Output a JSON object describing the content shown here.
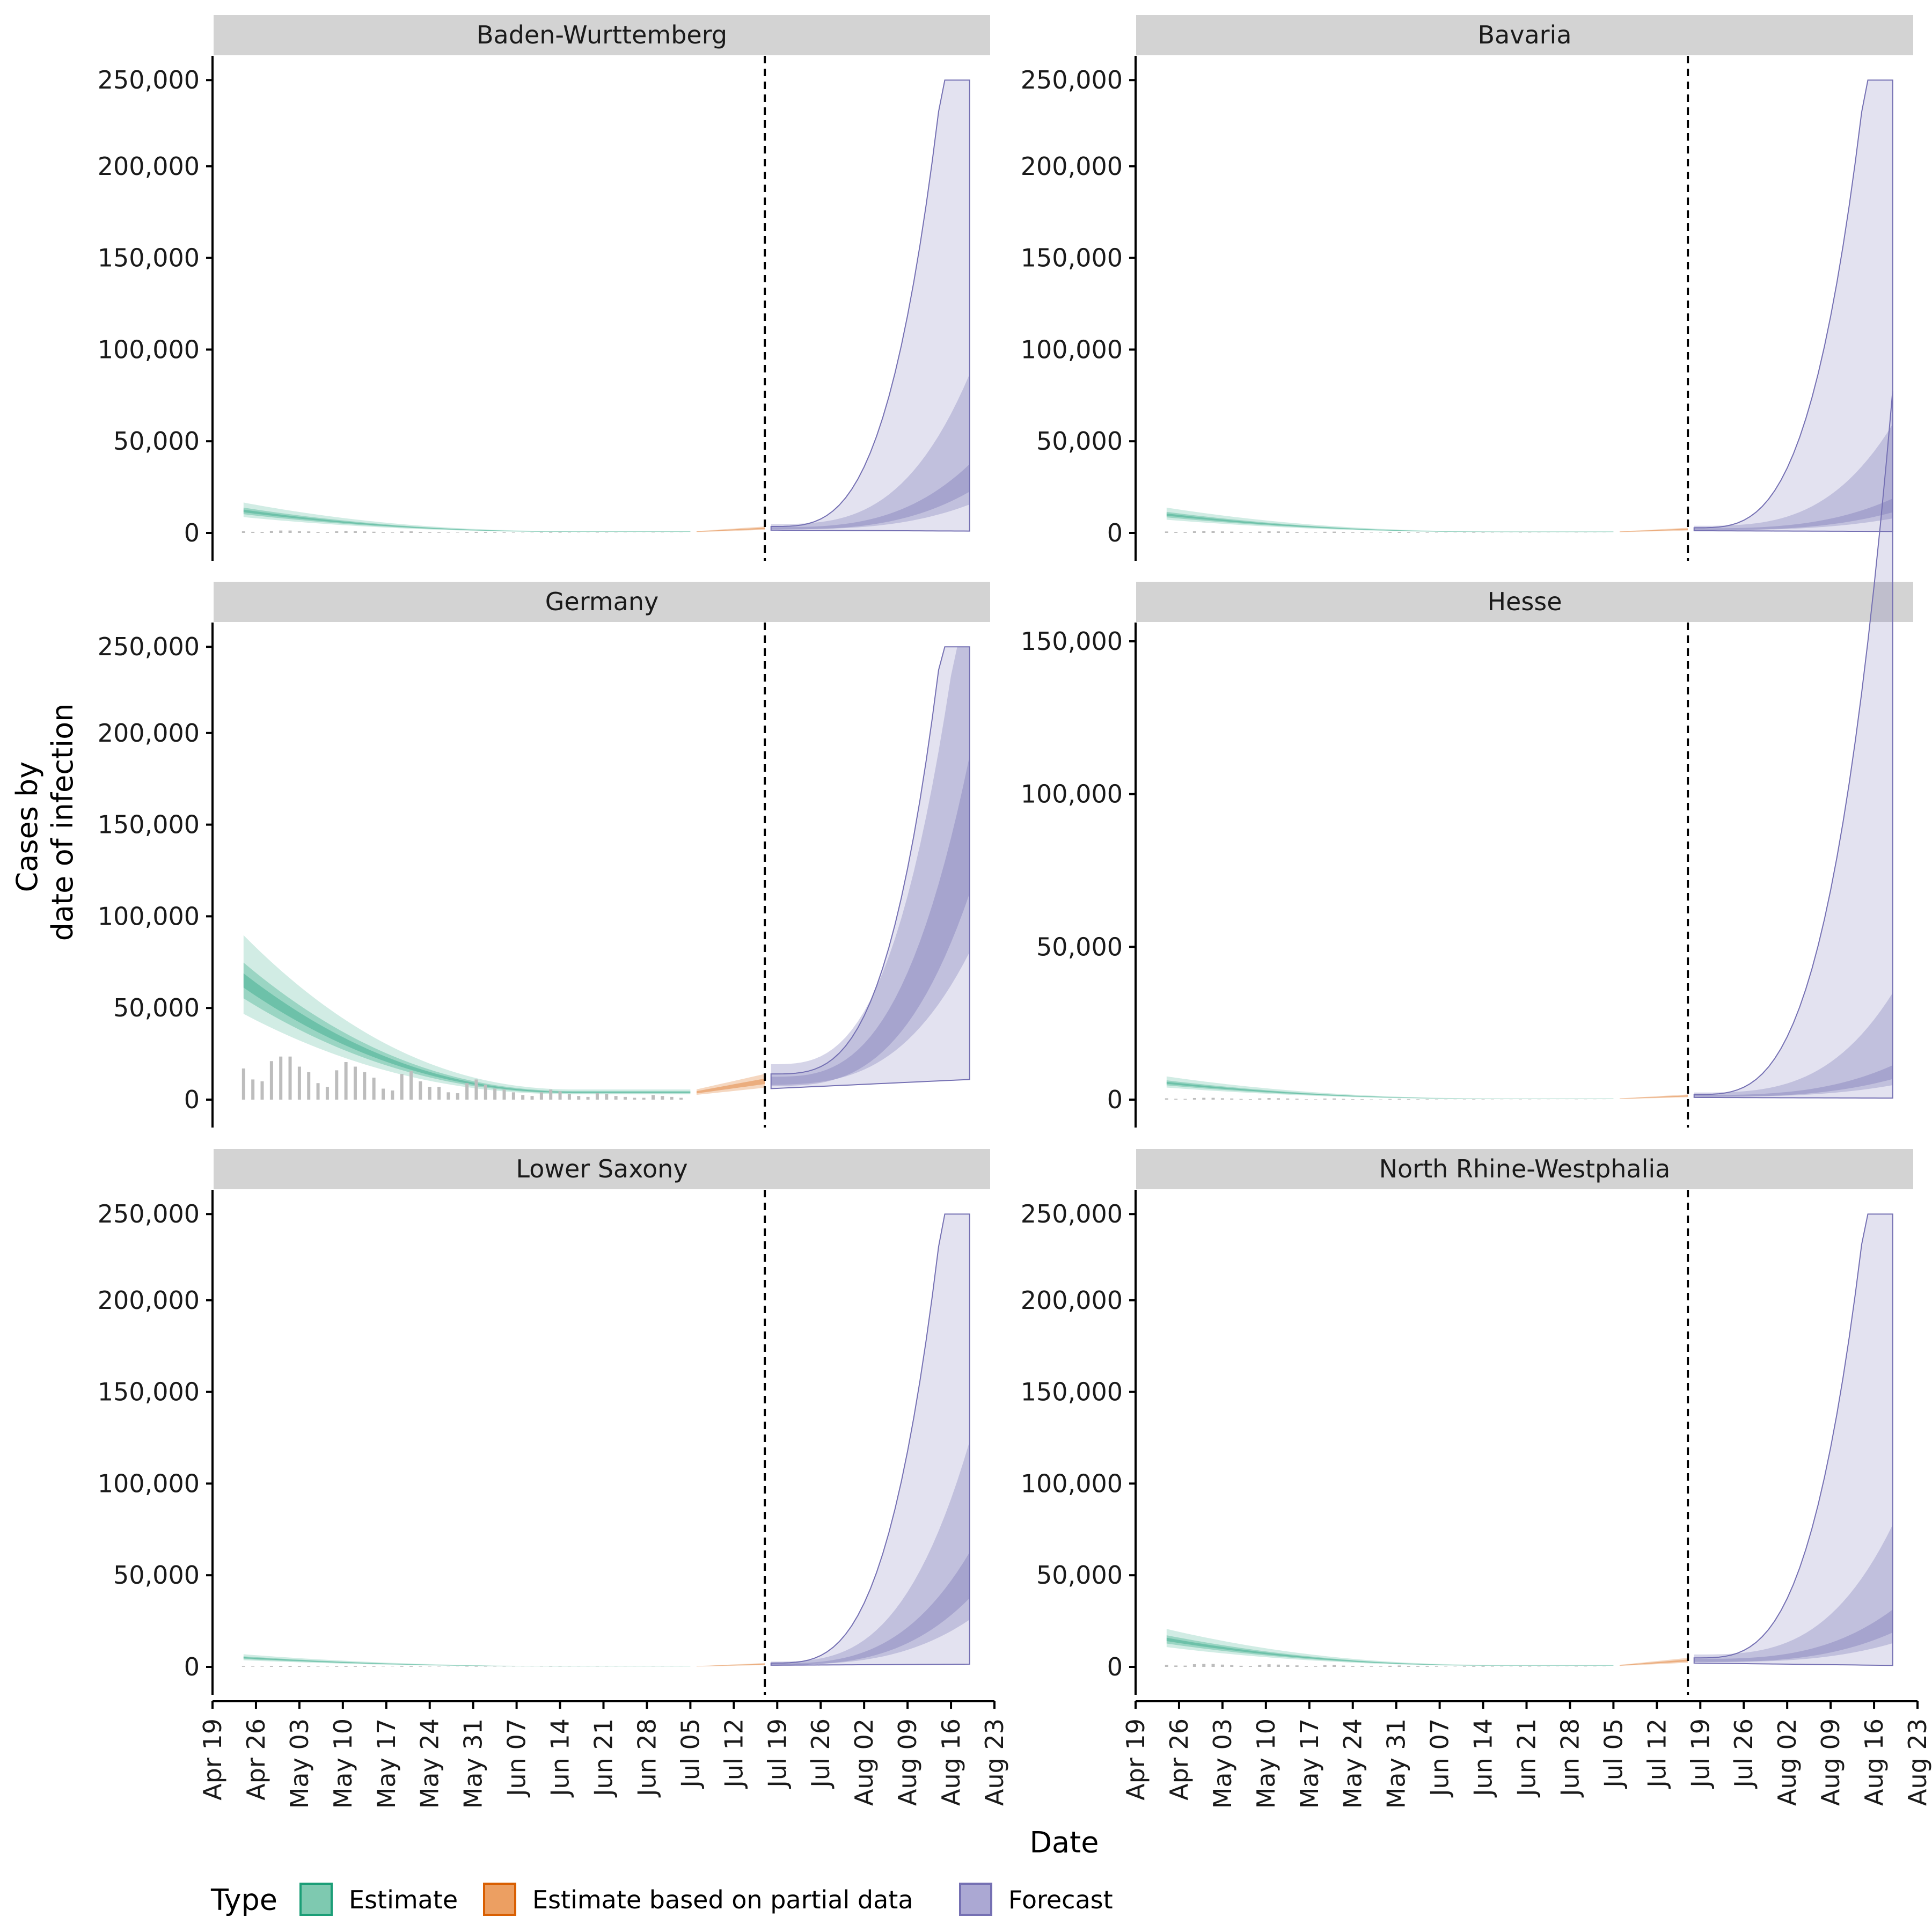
{
  "chart_data": {
    "type": "area",
    "layout": "facet-grid 3x2",
    "xlabel": "Date",
    "ylabel": [
      "Cases by",
      "date of infection"
    ],
    "x_ticks": [
      "Apr 19",
      "Apr 26",
      "May 03",
      "May 10",
      "May 17",
      "May 24",
      "May 31",
      "Jun 07",
      "Jun 14",
      "Jun 21",
      "Jun 28",
      "Jul 05",
      "Jul 12",
      "Jul 19",
      "Jul 26",
      "Aug 02",
      "Aug 09",
      "Aug 16",
      "Aug 23"
    ],
    "x_range": [
      "2020-04-19",
      "2020-08-23"
    ],
    "forecast_line_date": "2020-07-17",
    "legend": {
      "title": "Type",
      "position": "bottom",
      "entries": [
        {
          "label": "Estimate",
          "fill": "#7ec9b0",
          "stroke": "#1b9e77"
        },
        {
          "label": "Estimate based on partial data",
          "fill": "#ec9f62",
          "stroke": "#d95f02"
        },
        {
          "label": "Forecast",
          "fill": "#aba8d3",
          "stroke": "#7570b3"
        }
      ]
    },
    "colors": {
      "estimate": "#1b9e77",
      "partial": "#d95f02",
      "forecast": "#7570b3",
      "bars": "#bdbdbd",
      "strip": "#d3d3d3"
    },
    "forecast_cap": 247000,
    "panels": [
      {
        "title": "Baden-Wurttemberg",
        "ylim": [
          0,
          250000
        ],
        "y_ticks": [
          "0",
          "50,000",
          "100,000",
          "150,000",
          "200,000",
          "250,000"
        ],
        "y_tick_values": [
          0,
          50000,
          100000,
          150000,
          200000,
          250000
        ],
        "est_start": 12000,
        "est_end": 700,
        "partial_end": 2500,
        "fc_median_end": 30000,
        "fc_90_end": [
          1000,
          250000
        ]
      },
      {
        "title": "Bavaria",
        "ylim": [
          0,
          250000
        ],
        "y_ticks": [
          "0",
          "50,000",
          "100,000",
          "150,000",
          "200,000",
          "250,000"
        ],
        "y_tick_values": [
          0,
          50000,
          100000,
          150000,
          200000,
          250000
        ],
        "est_start": 10000,
        "est_end": 600,
        "partial_end": 2000,
        "fc_median_end": 15000,
        "fc_90_end": [
          800,
          250000
        ]
      },
      {
        "title": "Germany",
        "ylim": [
          0,
          250000
        ],
        "y_ticks": [
          "0",
          "50,000",
          "100,000",
          "150,000",
          "200,000",
          "250,000"
        ],
        "y_tick_values": [
          0,
          50000,
          100000,
          150000,
          200000,
          250000
        ],
        "est_start": 65000,
        "est_end": 4000,
        "partial_end": 10000,
        "fc_median_end": 150000,
        "fc_90_end": [
          11000,
          250000
        ]
      },
      {
        "title": "Hesse",
        "ylim": [
          0,
          150000
        ],
        "y_ticks": [
          "0",
          "50,000",
          "100,000",
          "150,000"
        ],
        "y_tick_values": [
          0,
          50000,
          100000,
          150000
        ],
        "est_start": 5500,
        "est_end": 300,
        "partial_end": 1200,
        "fc_median_end": 9000,
        "fc_90_end": [
          500,
          145000
        ]
      },
      {
        "title": "Lower Saxony",
        "ylim": [
          0,
          250000
        ],
        "y_ticks": [
          "0",
          "50,000",
          "100,000",
          "150,000",
          "200,000",
          "250,000"
        ],
        "y_tick_values": [
          0,
          50000,
          100000,
          150000,
          200000,
          250000
        ],
        "est_start": 5000,
        "est_end": 300,
        "partial_end": 1500,
        "fc_median_end": 50000,
        "fc_90_end": [
          1500,
          250000
        ]
      },
      {
        "title": "North Rhine-Westphalia",
        "ylim": [
          0,
          250000
        ],
        "y_ticks": [
          "0",
          "50,000",
          "100,000",
          "150,000",
          "200,000",
          "250,000"
        ],
        "y_tick_values": [
          0,
          50000,
          100000,
          150000,
          200000,
          250000
        ],
        "est_start": 15000,
        "est_end": 800,
        "partial_end": 3500,
        "fc_median_end": 25000,
        "fc_90_end": [
          800,
          250000
        ]
      }
    ],
    "reported_cases_germany": [
      17000,
      11000,
      10000,
      21000,
      23500,
      23500,
      18000,
      15000,
      9000,
      7000,
      16000,
      20500,
      18000,
      15000,
      12000,
      6000,
      5000,
      14000,
      15500,
      10000,
      7000,
      7000,
      4000,
      3500,
      9000,
      11000,
      8000,
      6000,
      5500,
      4000,
      2500,
      2000,
      4000,
      5500,
      4500,
      3000,
      2000,
      1500,
      3500,
      3000,
      2000,
      1500,
      1000,
      1000,
      2500,
      2000,
      1500,
      1000
    ]
  }
}
